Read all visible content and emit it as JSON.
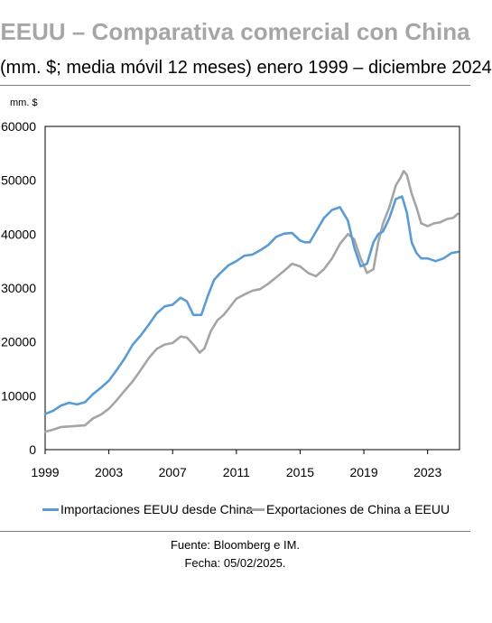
{
  "header": {
    "title": "EEUU – Comparativa comercial con China",
    "subtitle": "(mm. $; media móvil 12 meses) enero 1999 – diciembre 2024"
  },
  "footer": {
    "source": "Fuente: Bloomberg e IM.",
    "date": "Fecha: 05/02/2025."
  },
  "chart_data": {
    "type": "line",
    "title": "EEUU – Comparativa comercial con China",
    "ylabel": "mm. $",
    "xlabel": "",
    "xlim": [
      1999.0,
      2025.0
    ],
    "ylim": [
      0,
      60000
    ],
    "x_ticks": [
      "1999",
      "2003",
      "2007",
      "2011",
      "2015",
      "2019",
      "2023"
    ],
    "y_ticks": [
      "0",
      "10000",
      "20000",
      "30000",
      "40000",
      "50000",
      "60000"
    ],
    "grid": false,
    "legend_position": "bottom",
    "colors": {
      "imports": "#5b9bd5",
      "exports": "#a5a5a5"
    },
    "series": [
      {
        "name": "Importaciones EEUU desde China",
        "color": "#5b9bd5",
        "x": [
          1999.0,
          1999.5,
          2000.0,
          2000.5,
          2001.0,
          2001.5,
          2002.0,
          2002.5,
          2003.0,
          2003.5,
          2004.0,
          2004.5,
          2005.0,
          2005.5,
          2006.0,
          2006.5,
          2007.0,
          2007.5,
          2007.9,
          2008.3,
          2008.8,
          2009.2,
          2009.6,
          2010.0,
          2010.5,
          2011.0,
          2011.5,
          2012.0,
          2012.5,
          2013.0,
          2013.5,
          2014.0,
          2014.5,
          2015.0,
          2015.3,
          2015.6,
          2016.0,
          2016.5,
          2017.0,
          2017.5,
          2018.0,
          2018.4,
          2018.8,
          2019.2,
          2019.6,
          2019.9,
          2020.2,
          2020.6,
          2021.0,
          2021.4,
          2021.7,
          2022.0,
          2022.3,
          2022.6,
          2023.0,
          2023.5,
          2024.0,
          2024.5,
          2024.9
        ],
        "values": [
          6600,
          7200,
          8200,
          8700,
          8400,
          8800,
          10300,
          11500,
          12800,
          14800,
          17000,
          19500,
          21200,
          23200,
          25300,
          26600,
          26900,
          28200,
          27500,
          25000,
          25000,
          28500,
          31500,
          32800,
          34200,
          35000,
          36000,
          36200,
          37000,
          38000,
          39500,
          40100,
          40200,
          38800,
          38500,
          38500,
          40500,
          43000,
          44500,
          45000,
          42500,
          37500,
          34000,
          34500,
          38500,
          40000,
          40500,
          43000,
          46500,
          47000,
          44000,
          38500,
          36500,
          35500,
          35500,
          35000,
          35500,
          36500,
          36700
        ]
      },
      {
        "name": "Exportaciones de China a EEUU",
        "color": "#a5a5a5",
        "x": [
          1999.0,
          1999.5,
          2000.0,
          2000.5,
          2001.0,
          2001.5,
          2002.0,
          2002.5,
          2003.0,
          2003.5,
          2004.0,
          2004.5,
          2005.0,
          2005.5,
          2006.0,
          2006.5,
          2007.0,
          2007.5,
          2007.9,
          2008.3,
          2008.7,
          2009.0,
          2009.4,
          2009.8,
          2010.2,
          2010.6,
          2011.0,
          2011.5,
          2012.0,
          2012.5,
          2013.0,
          2013.5,
          2014.0,
          2014.5,
          2015.0,
          2015.5,
          2016.0,
          2016.5,
          2017.0,
          2017.5,
          2018.0,
          2018.4,
          2018.8,
          2019.2,
          2019.6,
          2019.9,
          2020.2,
          2020.6,
          2021.0,
          2021.3,
          2021.5,
          2021.7,
          2022.0,
          2022.3,
          2022.6,
          2023.0,
          2023.4,
          2023.8,
          2024.2,
          2024.6,
          2024.9
        ],
        "values": [
          3300,
          3700,
          4200,
          4300,
          4400,
          4500,
          5800,
          6500,
          7600,
          9200,
          11000,
          12700,
          14800,
          17000,
          18700,
          19500,
          19800,
          21000,
          20800,
          19500,
          18000,
          18800,
          22000,
          24000,
          25000,
          26500,
          28000,
          28800,
          29500,
          29800,
          30800,
          32000,
          33200,
          34500,
          34000,
          32800,
          32200,
          33500,
          35500,
          38200,
          40000,
          39000,
          35500,
          32800,
          33500,
          38500,
          42000,
          45000,
          49000,
          50500,
          51700,
          51000,
          47500,
          45000,
          42000,
          41500,
          42000,
          42200,
          42800,
          43000,
          43800
        ]
      }
    ]
  }
}
